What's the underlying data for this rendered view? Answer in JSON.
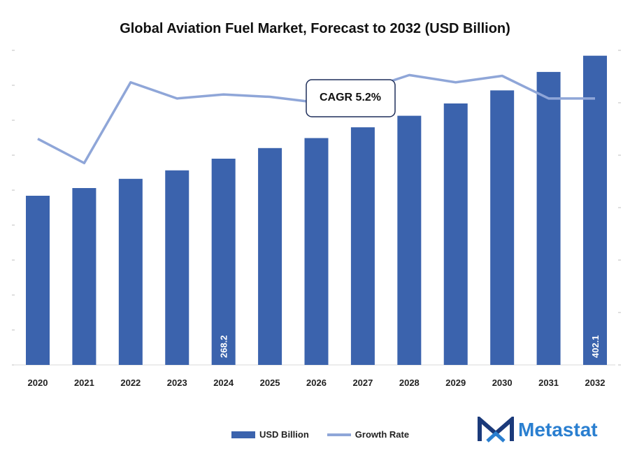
{
  "title": "Global Aviation Fuel Market, Forecast to 2032 (USD Billion)",
  "annotation": "CAGR 5.2%",
  "brand": {
    "name": "Metastat",
    "color": "#2a7fd0",
    "mark_color": "#1b3a7a"
  },
  "colors": {
    "bar": "#3b63ad",
    "line": "#8fa6d8"
  },
  "legend": {
    "bar_label": "USD Billion",
    "line_label": "Growth Rate"
  },
  "chart_data": {
    "type": "bar",
    "categories": [
      "2020",
      "2021",
      "2022",
      "2023",
      "2024",
      "2025",
      "2026",
      "2027",
      "2028",
      "2029",
      "2030",
      "2031",
      "2032"
    ],
    "series": [
      {
        "name": "USD Billion",
        "type": "bar",
        "values": [
          220,
          230,
          242,
          253,
          268.2,
          282,
          295,
          309,
          324,
          340,
          357,
          381,
          402.1
        ],
        "labels": [
          "",
          "",
          "",
          "",
          "268.2",
          "",
          "",
          "",
          "",
          "",
          "",
          "",
          "402.1"
        ]
      },
      {
        "name": "Growth Rate",
        "type": "line",
        "values": [
          4.4,
          4.1,
          5.1,
          4.9,
          4.95,
          4.92,
          4.85,
          5.0,
          5.19,
          5.1,
          5.18,
          4.9,
          4.9
        ]
      }
    ],
    "ylim": [
      0,
      420
    ],
    "ylim_right": [
      1.6,
      5.6
    ],
    "grid": false,
    "legend_position": "bottom"
  }
}
